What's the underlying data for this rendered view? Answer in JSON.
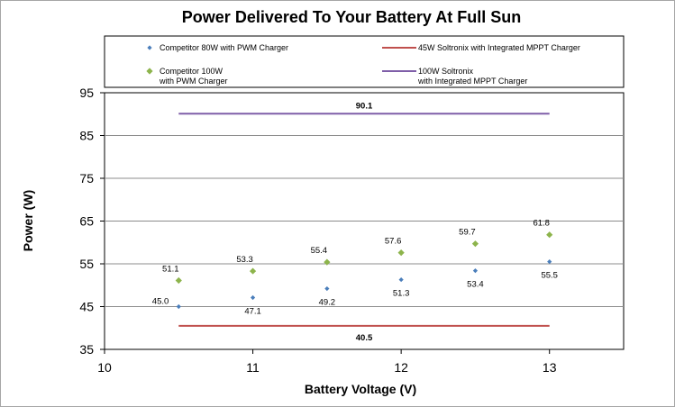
{
  "chart_data": {
    "type": "scatter",
    "title": "Power Delivered To Your Battery At Full Sun",
    "xlabel": "Battery Voltage (V)",
    "ylabel": "Power (W)",
    "xlim": [
      10,
      13.5
    ],
    "ylim": [
      35,
      95
    ],
    "x_ticks": [
      10,
      11,
      12,
      13
    ],
    "x_tick_labels": [
      "10",
      "11",
      "12",
      "13"
    ],
    "y_ticks": [
      35,
      45,
      55,
      65,
      75,
      85,
      95
    ],
    "y_tick_labels": [
      "35",
      "45",
      "55",
      "65",
      "75",
      "85",
      "95"
    ],
    "grid": "horizontal",
    "legend_position": "top",
    "series": [
      {
        "name": "Competitor 80W with PWM Charger",
        "legend_lines": [
          "Competitor 80W with PWM Charger"
        ],
        "kind": "scatter",
        "marker": "diamond",
        "color": "#4a7ebb",
        "x": [
          10.5,
          11.0,
          11.5,
          12.0,
          12.5,
          13.0
        ],
        "y": [
          45.0,
          47.1,
          49.2,
          51.3,
          53.4,
          55.5
        ],
        "labels": [
          "45.0",
          "47.1",
          "49.2",
          "51.3",
          "53.4",
          "55.5"
        ]
      },
      {
        "name": "Competitor 100W with PWM Charger",
        "legend_lines": [
          "Competitor 100W",
          "with PWM Charger"
        ],
        "kind": "scatter",
        "marker": "diamond",
        "color": "#8db44c",
        "x": [
          10.5,
          11.0,
          11.5,
          12.0,
          12.5,
          13.0
        ],
        "y": [
          51.1,
          53.3,
          55.4,
          57.6,
          59.7,
          61.8
        ],
        "labels": [
          "51.1",
          "53.3",
          "55.4",
          "57.6",
          "59.7",
          "61.8"
        ]
      },
      {
        "name": "45W Soltronix with Integrated MPPT Charger",
        "legend_lines": [
          "45W Soltronix with Integrated MPPT Charger"
        ],
        "kind": "line",
        "color": "#c0504d",
        "x": [
          10.5,
          13.0
        ],
        "y": [
          40.5,
          40.5
        ],
        "label": "40.5"
      },
      {
        "name": "100W Soltronix with Integrated MPPT Charger",
        "legend_lines": [
          "100W Soltronix",
          "with Integrated MPPT Charger"
        ],
        "kind": "line",
        "color": "#7f5ea8",
        "x": [
          10.5,
          13.0
        ],
        "y": [
          90.1,
          90.1
        ],
        "label": "90.1"
      }
    ]
  }
}
